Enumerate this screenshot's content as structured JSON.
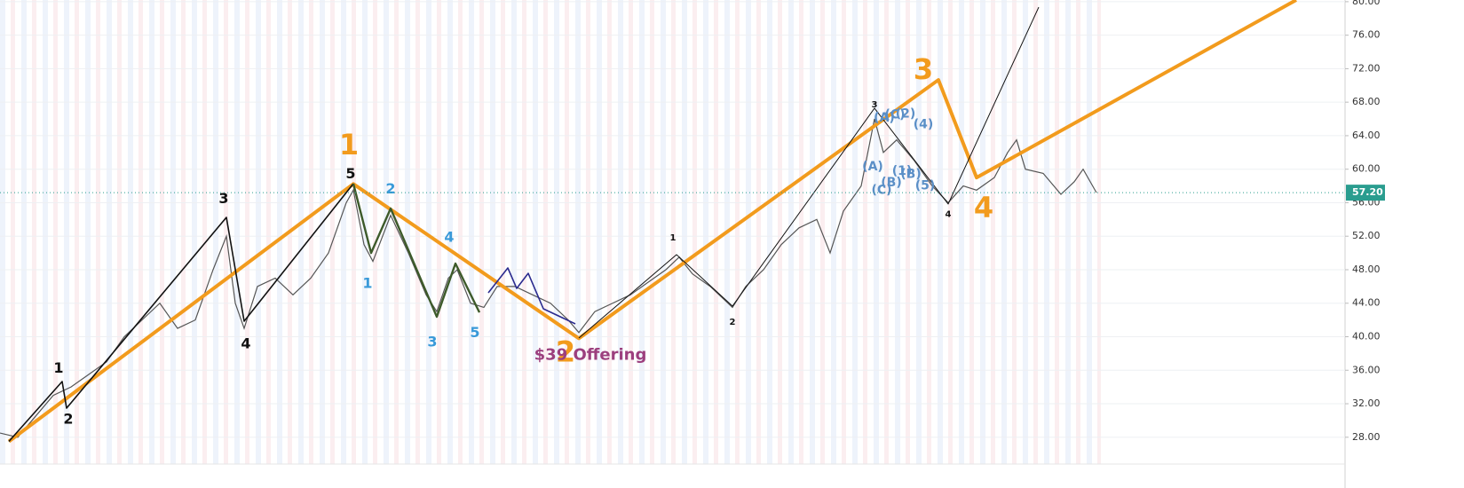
{
  "chart_data": {
    "type": "line",
    "color": "#555555",
    "x": [
      0,
      20,
      40,
      60,
      80,
      100,
      120,
      140,
      160,
      180,
      200,
      220,
      240,
      255,
      265,
      275,
      290,
      310,
      330,
      350,
      370,
      390,
      398,
      410,
      420,
      440,
      460,
      480,
      492,
      505,
      515,
      530,
      545,
      560,
      580,
      600,
      620,
      640,
      652,
      670,
      690,
      710,
      730,
      750,
      765,
      780,
      800,
      825,
      840,
      860,
      880,
      900,
      920,
      935,
      950,
      970,
      985,
      995,
      1010,
      1030,
      1050,
      1068,
      1085,
      1100,
      1120,
      1135,
      1145,
      1155,
      1175,
      1195,
      1210,
      1220,
      1235
    ],
    "values": [
      28.5,
      28,
      30.5,
      33,
      34,
      35.5,
      37,
      40,
      42,
      44,
      41,
      42,
      48,
      52,
      44,
      41,
      46,
      47,
      45,
      47,
      50,
      56,
      57.5,
      51,
      49,
      54.5,
      50,
      45,
      43,
      47,
      48,
      44,
      43.5,
      46,
      46,
      45,
      44,
      42,
      40.5,
      43,
      44,
      45,
      46.5,
      48,
      49.5,
      47.5,
      46,
      43.5,
      46,
      48,
      51,
      53,
      54,
      50,
      55,
      58,
      66,
      62,
      63.5,
      61,
      58,
      56,
      58,
      57.5,
      59,
      62,
      63.5,
      60,
      59.5,
      57,
      58.5,
      60,
      57.2
    ],
    "xlim": [
      0,
      1515
    ],
    "ylim": [
      24.8,
      80.2
    ],
    "yticks": [
      {
        "value": 28,
        "label": "28.00"
      },
      {
        "value": 32,
        "label": "32.00"
      },
      {
        "value": 36,
        "label": "36.00"
      },
      {
        "value": 40,
        "label": "40.00"
      },
      {
        "value": 44,
        "label": "44.00"
      },
      {
        "value": 48,
        "label": "48.00"
      },
      {
        "value": 52,
        "label": "52.00"
      },
      {
        "value": 56,
        "label": "56.00"
      },
      {
        "value": 60,
        "label": "60.00"
      },
      {
        "value": 64,
        "label": "64.00"
      },
      {
        "value": 68,
        "label": "68.00"
      },
      {
        "value": 72,
        "label": "72.00"
      },
      {
        "value": 76,
        "label": "76.00"
      },
      {
        "value": 80,
        "label": "80.00"
      }
    ],
    "grid": true,
    "last_price": {
      "value": 57.2,
      "label": "57.20"
    },
    "last_price_color": "#2a9d8f",
    "waves": [
      {
        "color": "#f29b1d",
        "width": 4,
        "x": [
          10,
          398,
          652,
          1057,
          1100,
          1460
        ],
        "values": [
          27.5,
          58.24,
          39.8,
          70.66,
          59.0,
          80.2
        ]
      },
      {
        "color": "#111111",
        "width": 1.6,
        "x": [
          10,
          70,
          75,
          255,
          275,
          398
        ],
        "values": [
          27.5,
          34.65,
          31.47,
          54.25,
          41.85,
          58.27
        ]
      },
      {
        "color": "#111111",
        "width": 1,
        "x": [
          652,
          762,
          825,
          985,
          1068,
          1170
        ],
        "values": [
          39.84,
          49.8,
          43.65,
          67.28,
          55.84,
          79.35
        ]
      },
      {
        "color": "#3d5a2a",
        "width": 2.4,
        "x": [
          398,
          418,
          440,
          492,
          513,
          540
        ],
        "values": [
          58.27,
          50.0,
          55.31,
          42.38,
          48.74,
          42.9
        ]
      },
      {
        "color": "#2b2b8f",
        "width": 1.6,
        "x": [
          550,
          572,
          582,
          595,
          612,
          648
        ],
        "values": [
          45.24,
          48.21,
          45.77,
          47.57,
          43.34,
          41.54
        ]
      }
    ],
    "annotations": [
      {
        "text": "1",
        "x": 393,
        "y": 62.7,
        "color": "#f29b1d",
        "size": 32
      },
      {
        "text": "2",
        "x": 637,
        "y": 38.0,
        "color": "#f29b1d",
        "size": 32
      },
      {
        "text": "3",
        "x": 1040,
        "y": 71.7,
        "color": "#f29b1d",
        "size": 32
      },
      {
        "text": "4",
        "x": 1108,
        "y": 55.2,
        "color": "#f29b1d",
        "size": 32
      },
      {
        "text": "1",
        "x": 66,
        "y": 36.2,
        "color": "#111111",
        "size": 16
      },
      {
        "text": "2",
        "x": 77,
        "y": 30.1,
        "color": "#111111",
        "size": 16
      },
      {
        "text": "3",
        "x": 252,
        "y": 56.4,
        "color": "#111111",
        "size": 16
      },
      {
        "text": "4",
        "x": 277,
        "y": 39.1,
        "color": "#111111",
        "size": 16
      },
      {
        "text": "5",
        "x": 395,
        "y": 59.4,
        "color": "#111111",
        "size": 16
      },
      {
        "text": "1",
        "x": 758,
        "y": 51.8,
        "color": "#111111",
        "size": 10
      },
      {
        "text": "2",
        "x": 825,
        "y": 41.75,
        "color": "#111111",
        "size": 10
      },
      {
        "text": "3",
        "x": 985,
        "y": 67.7,
        "color": "#111111",
        "size": 10
      },
      {
        "text": "4",
        "x": 1068,
        "y": 54.6,
        "color": "#111111",
        "size": 10
      },
      {
        "text": "2",
        "x": 440,
        "y": 57.6,
        "color": "#3a9ad9",
        "size": 16
      },
      {
        "text": "1",
        "x": 414,
        "y": 46.3,
        "color": "#3a9ad9",
        "size": 16
      },
      {
        "text": "4",
        "x": 506,
        "y": 51.8,
        "color": "#3a9ad9",
        "size": 16
      },
      {
        "text": "3",
        "x": 487,
        "y": 39.3,
        "color": "#3a9ad9",
        "size": 16
      },
      {
        "text": "5",
        "x": 535,
        "y": 40.4,
        "color": "#3a9ad9",
        "size": 16
      },
      {
        "text": "(A)",
        "x": 983,
        "y": 60.3,
        "color": "#5b8fc7",
        "size": 14
      },
      {
        "text": "(C)",
        "x": 993,
        "y": 57.5,
        "color": "#5b8fc7",
        "size": 14
      },
      {
        "text": "(B)",
        "x": 1004,
        "y": 58.4,
        "color": "#5b8fc7",
        "size": 14
      },
      {
        "text": "(1)",
        "x": 1016,
        "y": 59.75,
        "color": "#5b8fc7",
        "size": 14
      },
      {
        "text": "(B)",
        "x": 1026,
        "y": 59.4,
        "color": "#5b8fc7",
        "size": 14
      },
      {
        "text": "(5)",
        "x": 1042,
        "y": 58.0,
        "color": "#5b8fc7",
        "size": 14
      },
      {
        "text": "(A)",
        "x": 996,
        "y": 66.1,
        "color": "#5b8fc7",
        "size": 14
      },
      {
        "text": "(C)",
        "x": 1008,
        "y": 66.5,
        "color": "#5b8fc7",
        "size": 14
      },
      {
        "text": "(2)",
        "x": 1020,
        "y": 66.6,
        "color": "#5b8fc7",
        "size": 14
      },
      {
        "text": "(4)",
        "x": 1040,
        "y": 65.3,
        "color": "#5b8fc7",
        "size": 14
      },
      {
        "text": "$39 Offering",
        "x": 665,
        "y": 37.8,
        "color": "#9c3f7e",
        "size": 18
      }
    ]
  }
}
